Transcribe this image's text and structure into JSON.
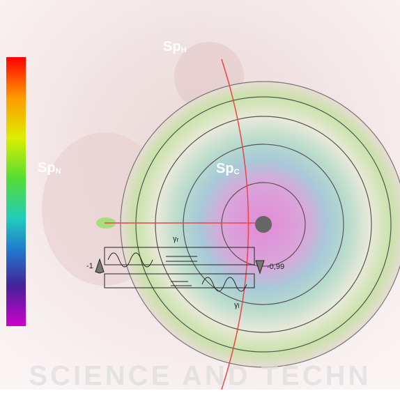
{
  "labels": {
    "sp_h": {
      "main": "Sp",
      "sub": "H"
    },
    "sp_n": {
      "main": "Sp",
      "sub": "N"
    },
    "sp_c": {
      "main": "Sp",
      "sub": "C"
    }
  },
  "waveguide": {
    "gamma_r": {
      "main": "γ",
      "sub": "r"
    },
    "gamma_l": {
      "main": "γ",
      "sub": "l"
    },
    "left_value": "-1",
    "right_value": "-0,99"
  },
  "watermark": "SCIENCE AND TECHN"
}
